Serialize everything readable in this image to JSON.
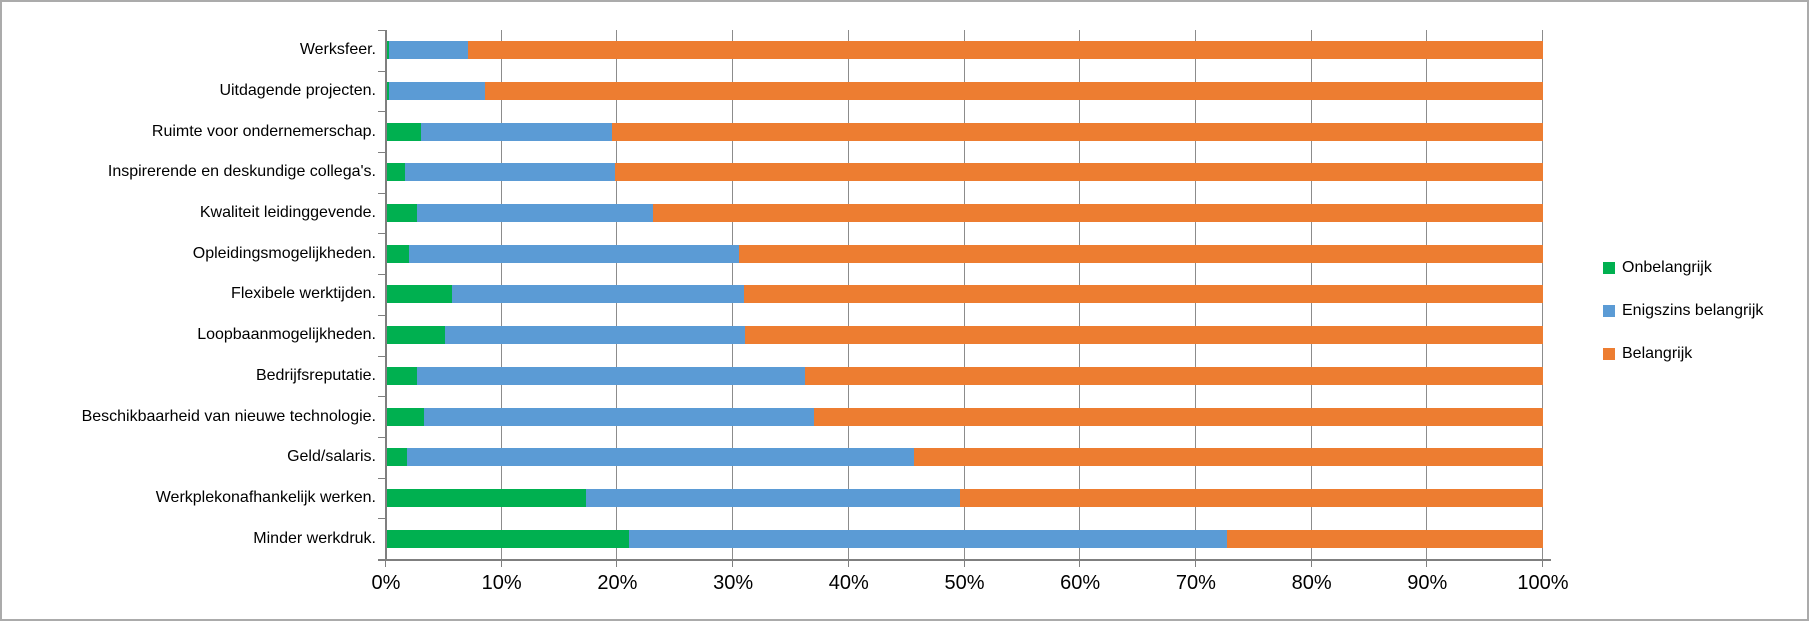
{
  "chart_data": {
    "type": "bar",
    "orientation": "horizontal",
    "stacked": true,
    "percent_of_total": true,
    "title": "",
    "xlabel": "",
    "ylabel": "",
    "xlim": [
      0,
      100
    ],
    "grid": true,
    "legend_position": "right",
    "x_ticks": [
      "0%",
      "10%",
      "20%",
      "30%",
      "40%",
      "50%",
      "60%",
      "70%",
      "80%",
      "90%",
      "100%"
    ],
    "categories": [
      "Werksfeer.",
      "Uitdagende projecten.",
      "Ruimte voor ondernemerschap.",
      "Inspirerende en deskundige collega's.",
      "Kwaliteit leidinggevende.",
      "Opleidingsmogelijkheden.",
      "Flexibele werktijden.",
      "Loopbaanmogelijkheden.",
      "Bedrijfsreputatie.",
      "Beschikbaarheid van nieuwe technologie.",
      "Geld/salaris.",
      "Werkplekonafhankelijk werken.",
      "Minder werkdruk."
    ],
    "series": [
      {
        "name": "Onbelangrijk",
        "color": "#00b050",
        "values": [
          0.3,
          0.3,
          3.0,
          1.6,
          2.7,
          2.0,
          5.7,
          5.1,
          2.7,
          3.3,
          1.8,
          17.3,
          21.0
        ]
      },
      {
        "name": "Enigszins belangrijk",
        "color": "#5b9bd5",
        "values": [
          6.8,
          8.3,
          16.5,
          18.2,
          20.4,
          28.5,
          25.2,
          25.9,
          33.5,
          33.7,
          43.8,
          32.3,
          51.7
        ]
      },
      {
        "name": "Belangrijk",
        "color": "#ed7d31",
        "values": [
          92.9,
          91.4,
          80.5,
          80.2,
          76.9,
          69.5,
          69.1,
          69.0,
          63.8,
          63.0,
          54.4,
          50.4,
          27.3
        ]
      }
    ]
  },
  "colors": {
    "gridline": "#8c8c8c",
    "axis": "#7f7f7f",
    "frame_border": "#ababab",
    "text": "#000000",
    "background": "#ffffff"
  }
}
